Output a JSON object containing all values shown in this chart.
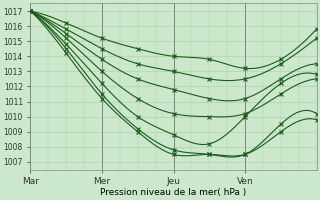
{
  "title": "Pression niveau de la mer( hPa )",
  "ylabel_ticks": [
    1007,
    1008,
    1009,
    1010,
    1011,
    1012,
    1013,
    1014,
    1015,
    1016,
    1017
  ],
  "ylim": [
    1006.5,
    1017.5
  ],
  "xlim": [
    0,
    96
  ],
  "xtick_positions": [
    0,
    24,
    48,
    72
  ],
  "xtick_labels": [
    "Mar",
    "Mer",
    "Jeu",
    "Ven"
  ],
  "bg_color": "#cce8cc",
  "grid_color": "#aaccaa",
  "line_color": "#1a5c1a",
  "line_width": 0.8,
  "marker_size": 2.5,
  "lines": [
    {
      "pts": [
        [
          0,
          1017
        ],
        [
          12,
          1016.2
        ],
        [
          24,
          1015.2
        ],
        [
          36,
          1014.5
        ],
        [
          48,
          1014.0
        ],
        [
          60,
          1013.8
        ],
        [
          72,
          1013.2
        ],
        [
          84,
          1013.8
        ],
        [
          96,
          1015.8
        ]
      ]
    },
    {
      "pts": [
        [
          0,
          1017
        ],
        [
          12,
          1015.8
        ],
        [
          24,
          1014.5
        ],
        [
          36,
          1013.5
        ],
        [
          48,
          1013.0
        ],
        [
          60,
          1012.5
        ],
        [
          72,
          1012.5
        ],
        [
          84,
          1013.5
        ],
        [
          96,
          1015.2
        ]
      ]
    },
    {
      "pts": [
        [
          0,
          1017
        ],
        [
          12,
          1015.5
        ],
        [
          24,
          1013.8
        ],
        [
          36,
          1012.5
        ],
        [
          48,
          1011.8
        ],
        [
          60,
          1011.2
        ],
        [
          72,
          1011.2
        ],
        [
          84,
          1012.5
        ],
        [
          96,
          1013.5
        ]
      ]
    },
    {
      "pts": [
        [
          0,
          1017
        ],
        [
          12,
          1015.2
        ],
        [
          24,
          1013.0
        ],
        [
          36,
          1011.2
        ],
        [
          48,
          1010.2
        ],
        [
          60,
          1010.0
        ],
        [
          72,
          1010.2
        ],
        [
          84,
          1011.5
        ],
        [
          96,
          1012.5
        ]
      ]
    },
    {
      "pts": [
        [
          0,
          1017
        ],
        [
          12,
          1014.8
        ],
        [
          24,
          1012.2
        ],
        [
          36,
          1010.0
        ],
        [
          48,
          1008.8
        ],
        [
          60,
          1008.2
        ],
        [
          72,
          1010.0
        ],
        [
          84,
          1012.2
        ],
        [
          96,
          1012.8
        ]
      ]
    },
    {
      "pts": [
        [
          0,
          1017
        ],
        [
          12,
          1014.5
        ],
        [
          24,
          1011.5
        ],
        [
          36,
          1009.2
        ],
        [
          48,
          1007.8
        ],
        [
          60,
          1007.5
        ],
        [
          72,
          1007.5
        ],
        [
          84,
          1009.5
        ],
        [
          96,
          1010.2
        ]
      ]
    },
    {
      "pts": [
        [
          0,
          1017
        ],
        [
          12,
          1014.2
        ],
        [
          24,
          1011.2
        ],
        [
          36,
          1009.0
        ],
        [
          48,
          1007.5
        ],
        [
          60,
          1007.5
        ],
        [
          72,
          1007.5
        ],
        [
          84,
          1009.0
        ],
        [
          96,
          1009.8
        ]
      ]
    }
  ]
}
